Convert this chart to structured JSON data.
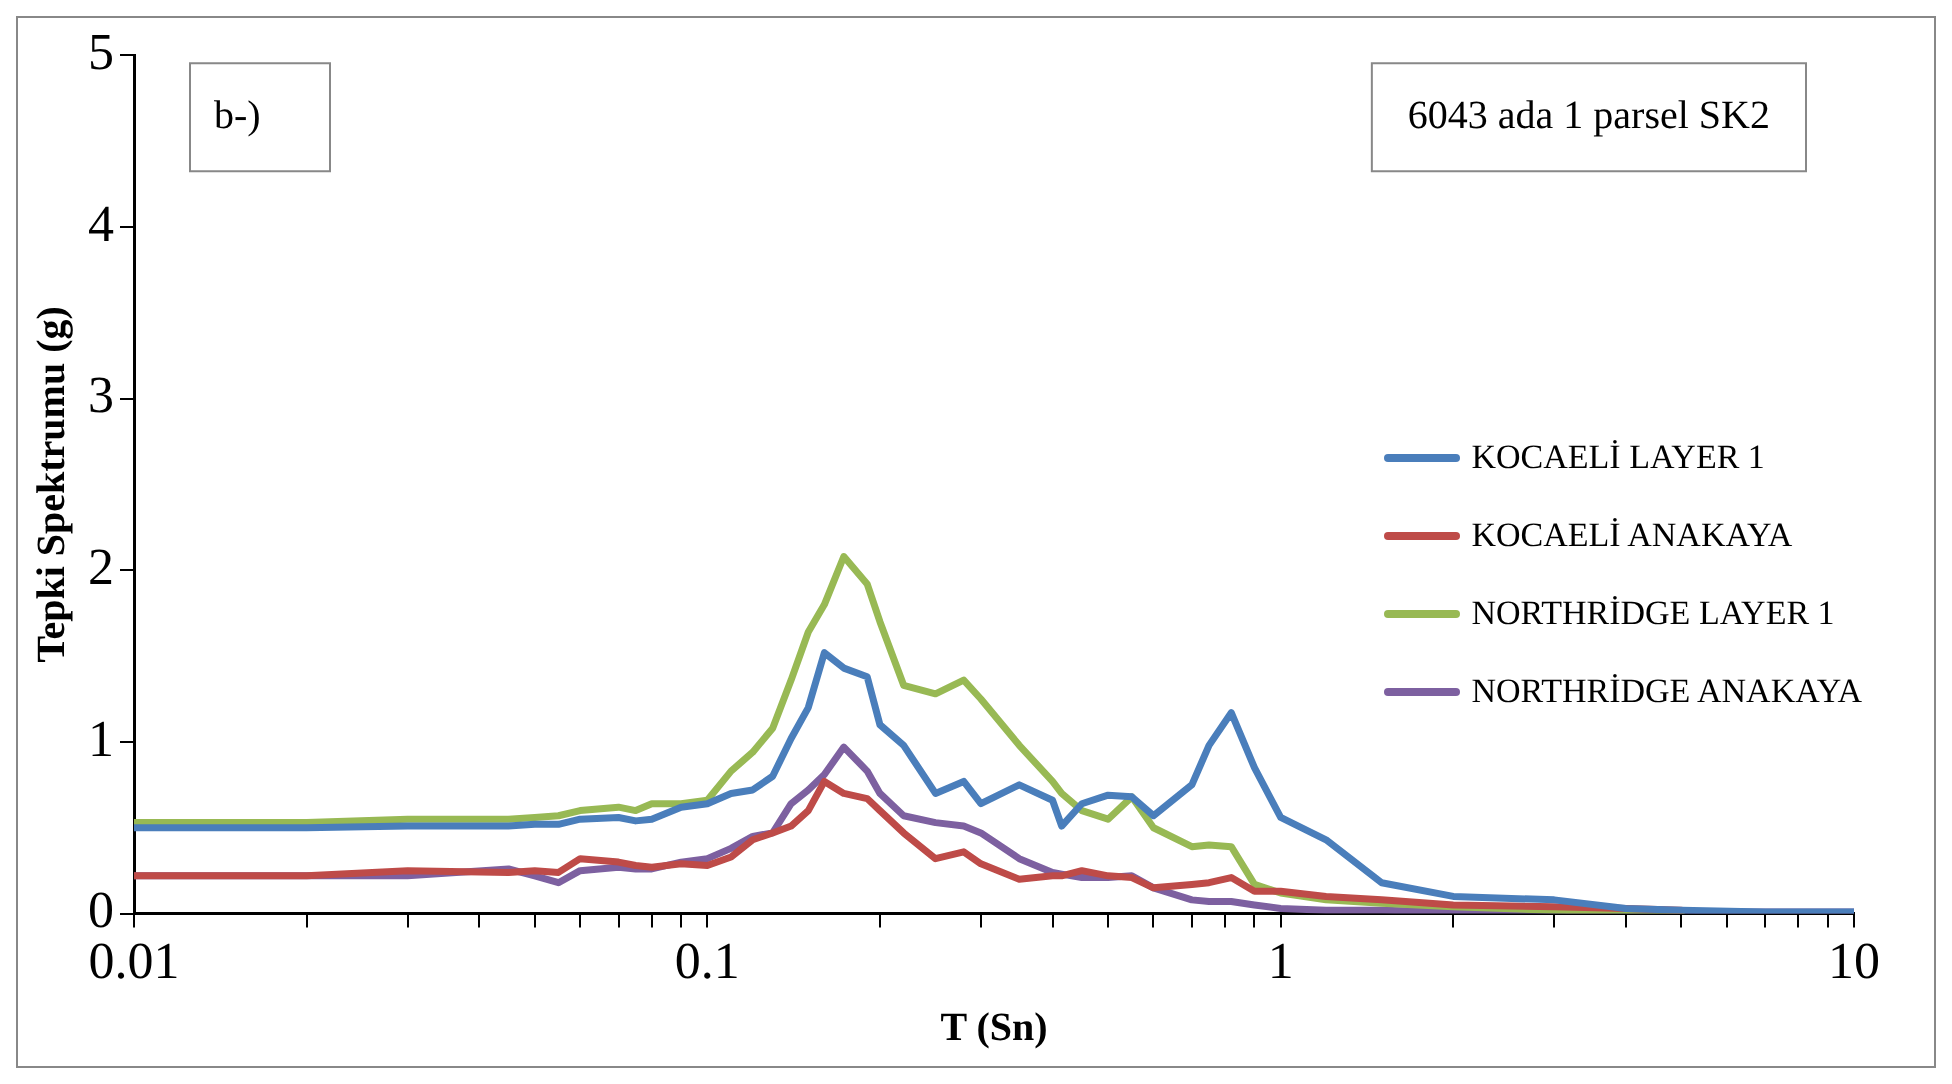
{
  "chart_data": {
    "type": "line",
    "xlabel": "T (Sn)",
    "ylabel": "Tepki Spektrumu (g)",
    "annotations": [
      "b-)",
      "6043 ada 1 parsel SK2"
    ],
    "x": [
      0.01,
      0.02,
      0.03,
      0.045,
      0.05,
      0.055,
      0.06,
      0.07,
      0.075,
      0.08,
      0.09,
      0.1,
      0.11,
      0.12,
      0.13,
      0.14,
      0.15,
      0.16,
      0.173,
      0.19,
      0.2,
      0.22,
      0.25,
      0.28,
      0.3,
      0.35,
      0.4,
      0.415,
      0.45,
      0.5,
      0.55,
      0.6,
      0.7,
      0.75,
      0.82,
      0.9,
      1,
      1.2,
      1.5,
      2,
      3,
      4,
      5,
      7,
      10
    ],
    "series": [
      {
        "name": "KOCAELİ LAYER 1",
        "color": "#4a7ebb",
        "values": [
          0.5,
          0.5,
          0.51,
          0.51,
          0.52,
          0.52,
          0.55,
          0.56,
          0.54,
          0.55,
          0.62,
          0.64,
          0.7,
          0.72,
          0.8,
          1.02,
          1.2,
          1.52,
          1.43,
          1.38,
          1.1,
          0.98,
          0.7,
          0.77,
          0.64,
          0.75,
          0.66,
          0.51,
          0.64,
          0.69,
          0.68,
          0.57,
          0.75,
          0.98,
          1.17,
          0.85,
          0.56,
          0.43,
          0.18,
          0.1,
          0.08,
          0.03,
          0.02,
          0.01,
          0.01
        ]
      },
      {
        "name": "KOCAELİ ANAKAYA",
        "color": "#be4b48",
        "values": [
          0.22,
          0.22,
          0.25,
          0.24,
          0.25,
          0.24,
          0.32,
          0.3,
          0.28,
          0.27,
          0.29,
          0.28,
          0.33,
          0.43,
          0.47,
          0.51,
          0.6,
          0.77,
          0.7,
          0.67,
          0.6,
          0.47,
          0.32,
          0.36,
          0.29,
          0.2,
          0.22,
          0.22,
          0.25,
          0.22,
          0.21,
          0.15,
          0.17,
          0.18,
          0.21,
          0.13,
          0.13,
          0.1,
          0.08,
          0.05,
          0.04,
          0.03,
          0.02,
          null,
          null
        ]
      },
      {
        "name": "NORTHRİDGE LAYER 1",
        "color": "#98b954",
        "values": [
          0.53,
          0.53,
          0.55,
          0.55,
          0.56,
          0.57,
          0.6,
          0.62,
          0.6,
          0.64,
          0.64,
          0.66,
          0.83,
          0.94,
          1.08,
          1.36,
          1.64,
          1.8,
          2.08,
          1.92,
          1.7,
          1.33,
          1.28,
          1.36,
          1.25,
          0.98,
          0.77,
          0.7,
          0.6,
          0.55,
          0.68,
          0.5,
          0.39,
          0.4,
          0.39,
          0.17,
          0.12,
          0.08,
          0.06,
          0.04,
          0.02,
          0.01,
          0.01,
          null,
          null
        ]
      },
      {
        "name": "NORTHRİDGE ANAKAYA",
        "color": "#7d60a0",
        "values": [
          0.22,
          0.22,
          0.22,
          0.26,
          0.22,
          0.18,
          0.25,
          0.27,
          0.26,
          0.26,
          0.3,
          0.32,
          0.38,
          0.45,
          0.47,
          0.64,
          0.72,
          0.81,
          0.97,
          0.83,
          0.7,
          0.57,
          0.53,
          0.51,
          0.47,
          0.32,
          0.24,
          0.23,
          0.21,
          0.21,
          0.22,
          0.15,
          0.08,
          0.07,
          0.07,
          0.05,
          0.03,
          0.02,
          0.02,
          0.01,
          0.01,
          0.01,
          0.01,
          0.01,
          0.01
        ]
      }
    ],
    "xlim": [
      0.01,
      10
    ],
    "ylim": [
      0,
      5
    ],
    "xticks": [
      0.01,
      {
        "value": 0.02,
        "label": null
      },
      {
        "value": 0.03,
        "label": null
      },
      {
        "value": 0.04,
        "label": null
      },
      {
        "value": 0.05,
        "label": null
      },
      {
        "value": 0.06,
        "label": null
      },
      {
        "value": 0.07,
        "label": null
      },
      {
        "value": 0.08,
        "label": null
      },
      {
        "value": 0.09,
        "label": null
      },
      0.1,
      {
        "value": 0.2,
        "label": null
      },
      {
        "value": 0.3,
        "label": null
      },
      {
        "value": 0.4,
        "label": null
      },
      {
        "value": 0.5,
        "label": null
      },
      {
        "value": 0.6,
        "label": null
      },
      {
        "value": 0.7,
        "label": null
      },
      {
        "value": 0.8,
        "label": null
      },
      {
        "value": 0.9,
        "label": null
      },
      1,
      {
        "value": 2,
        "label": null
      },
      {
        "value": 3,
        "label": null
      },
      {
        "value": 4,
        "label": null
      },
      {
        "value": 5,
        "label": null
      },
      {
        "value": 6,
        "label": null
      },
      {
        "value": 7,
        "label": null
      },
      {
        "value": 8,
        "label": null
      },
      {
        "value": 9,
        "label": null
      },
      10
    ],
    "yticks": [
      0,
      1,
      2,
      3,
      4,
      5
    ],
    "log": "x",
    "grid": false,
    "legend": "right",
    "marker": "none",
    "line_style": "solid"
  }
}
